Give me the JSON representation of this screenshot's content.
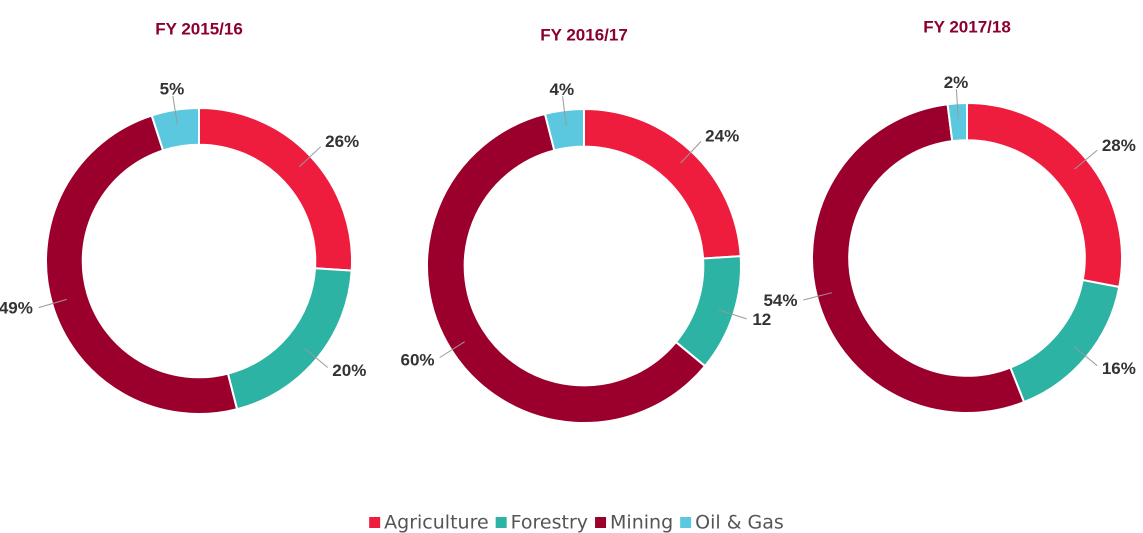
{
  "chart_data": [
    {
      "type": "donut",
      "title": "FY 2015/16",
      "values": [
        26,
        20,
        49,
        5
      ],
      "value_labels": [
        "26%",
        "20%",
        "49%",
        "5%"
      ]
    },
    {
      "type": "donut",
      "title": "FY 2016/17",
      "values": [
        24,
        12,
        60,
        4
      ],
      "value_labels": [
        "24%",
        "12",
        "60%",
        "4%"
      ]
    },
    {
      "type": "donut",
      "title": "FY 2017/18",
      "values": [
        28,
        16,
        54,
        2
      ],
      "value_labels": [
        "28%",
        "16%",
        "54%",
        "2%"
      ]
    }
  ],
  "legend": {
    "categories": [
      "Agriculture",
      "Forestry",
      "Mining",
      "Oil & Gas"
    ],
    "colors": [
      "#ee1c3d",
      "#2db3a4",
      "#9b002c",
      "#5bc8e0"
    ],
    "position": "bottom"
  }
}
